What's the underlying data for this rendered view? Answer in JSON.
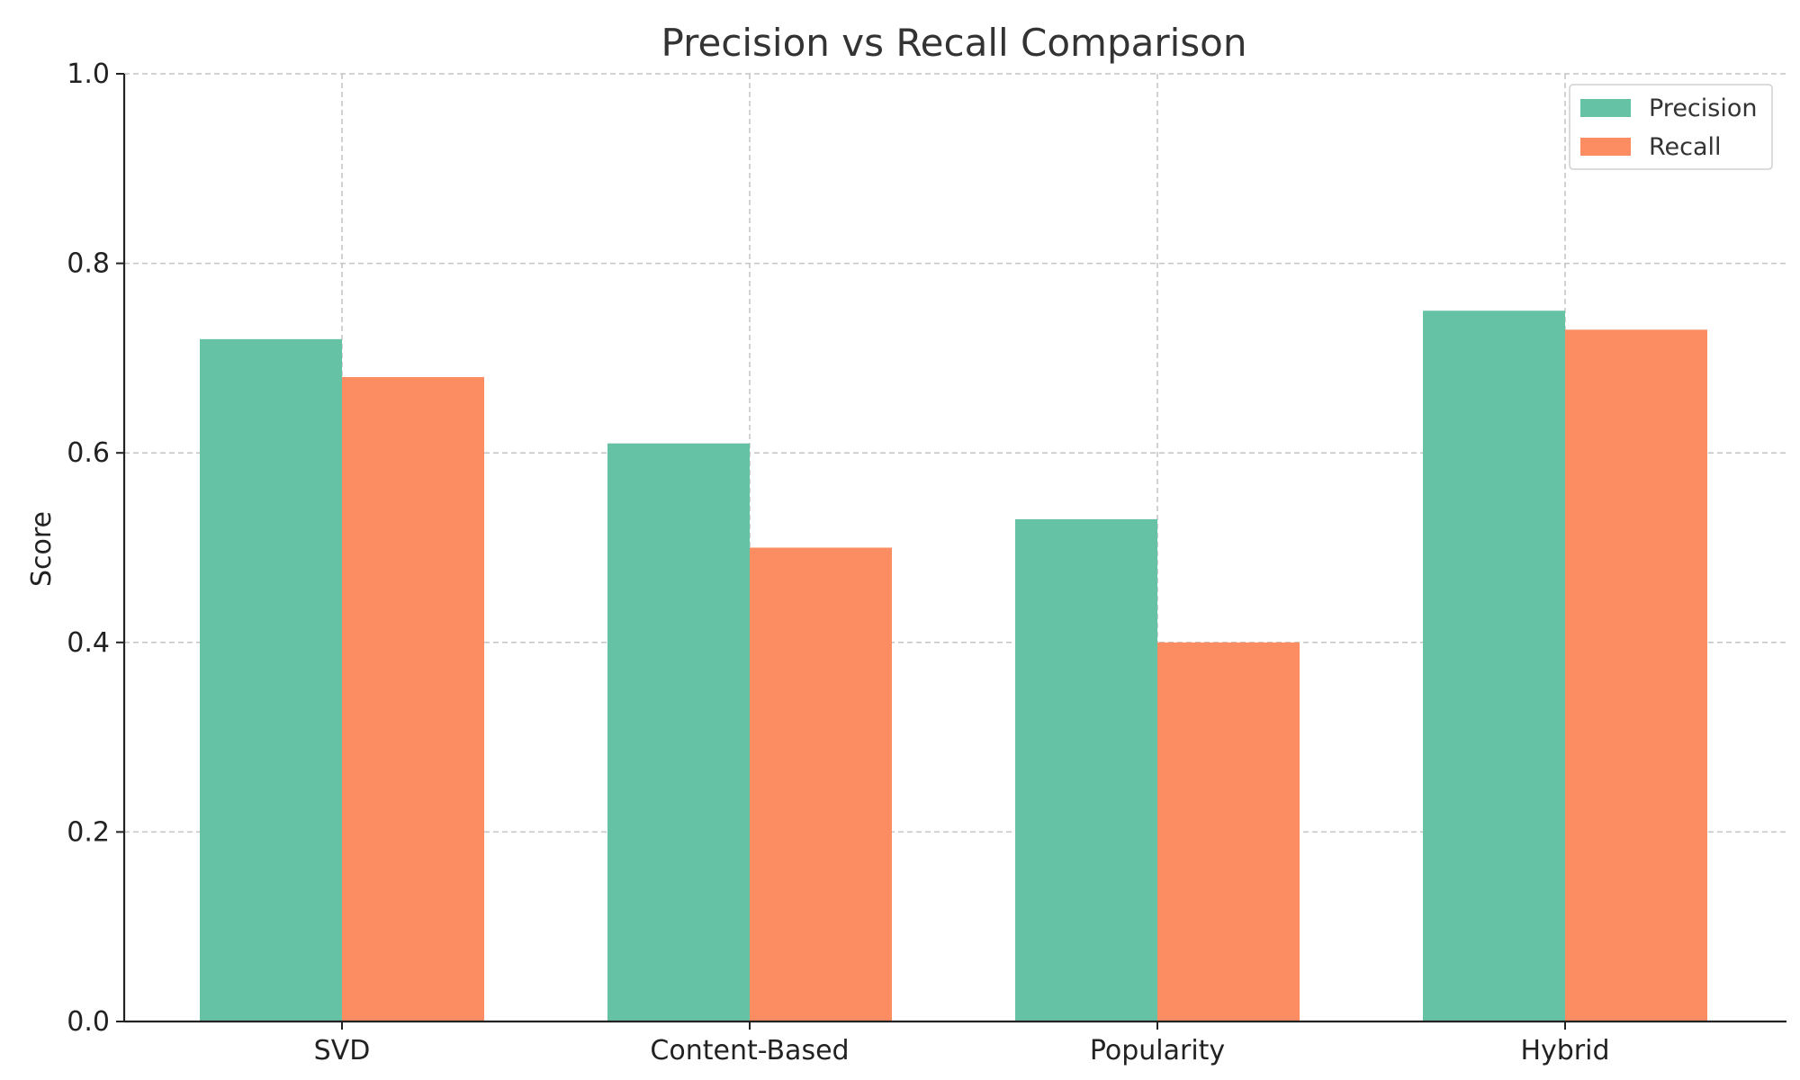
{
  "chart_data": {
    "type": "bar",
    "title": "Precision vs Recall Comparison",
    "xlabel": "",
    "ylabel": "Score",
    "categories": [
      "SVD",
      "Content-Based",
      "Popularity",
      "Hybrid"
    ],
    "series": [
      {
        "name": "Precision",
        "values": [
          0.72,
          0.61,
          0.53,
          0.75
        ],
        "color": "#66c2a5"
      },
      {
        "name": "Recall",
        "values": [
          0.68,
          0.5,
          0.4,
          0.73
        ],
        "color": "#fc8d62"
      }
    ],
    "ylim": [
      0,
      1.0
    ],
    "yticks": [
      "0.0",
      "0.2",
      "0.4",
      "0.6",
      "0.8",
      "1.0"
    ],
    "grid": true,
    "legend_position": "top-right"
  }
}
